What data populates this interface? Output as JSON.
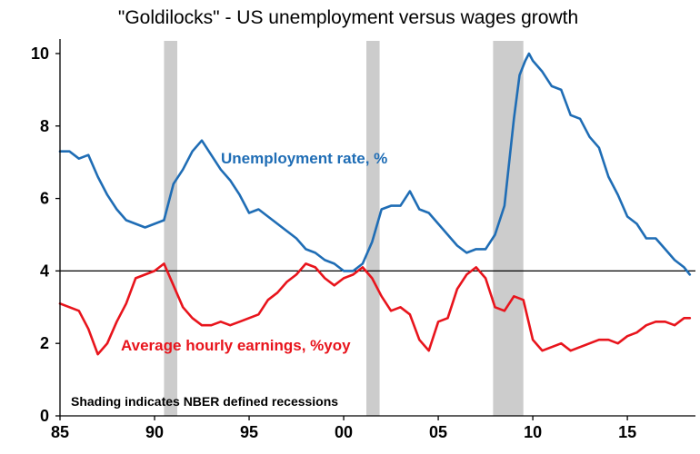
{
  "chart_data": {
    "type": "line",
    "title": "\"Goldilocks\" - US unemployment versus wages growth",
    "xlim": [
      1985,
      2018.6
    ],
    "ylim": [
      0,
      10.4
    ],
    "x_ticks": [
      {
        "value": 1985,
        "label": "85"
      },
      {
        "value": 1990,
        "label": "90"
      },
      {
        "value": 1995,
        "label": "95"
      },
      {
        "value": 2000,
        "label": "00"
      },
      {
        "value": 2005,
        "label": "05"
      },
      {
        "value": 2010,
        "label": "10"
      },
      {
        "value": 2015,
        "label": "15"
      }
    ],
    "y_ticks": [
      0,
      2,
      4,
      6,
      8,
      10
    ],
    "reference_line": 4,
    "recessions": [
      [
        1990.5,
        1991.2
      ],
      [
        2001.2,
        2001.9
      ],
      [
        2007.9,
        2009.5
      ]
    ],
    "annotation": "Shading indicates NBER defined recessions",
    "series": [
      {
        "name": "Unemployment rate, %",
        "color": "#1f6db5",
        "x": [
          1985.0,
          1985.5,
          1986.0,
          1986.5,
          1987.0,
          1987.5,
          1988.0,
          1988.5,
          1989.0,
          1989.5,
          1990.0,
          1990.5,
          1991.0,
          1991.5,
          1992.0,
          1992.5,
          1993.0,
          1993.5,
          1994.0,
          1994.5,
          1995.0,
          1995.5,
          1996.0,
          1996.5,
          1997.0,
          1997.5,
          1998.0,
          1998.5,
          1999.0,
          1999.5,
          2000.0,
          2000.5,
          2001.0,
          2001.5,
          2002.0,
          2002.5,
          2003.0,
          2003.5,
          2004.0,
          2004.5,
          2005.0,
          2005.5,
          2006.0,
          2006.5,
          2007.0,
          2007.5,
          2008.0,
          2008.5,
          2009.0,
          2009.3,
          2009.6,
          2009.8,
          2010.0,
          2010.5,
          2011.0,
          2011.5,
          2012.0,
          2012.5,
          2013.0,
          2013.5,
          2014.0,
          2014.5,
          2015.0,
          2015.5,
          2016.0,
          2016.5,
          2017.0,
          2017.5,
          2018.0,
          2018.3
        ],
        "y": [
          7.3,
          7.3,
          7.1,
          7.2,
          6.6,
          6.1,
          5.7,
          5.4,
          5.3,
          5.2,
          5.3,
          5.4,
          6.4,
          6.8,
          7.3,
          7.6,
          7.2,
          6.8,
          6.5,
          6.1,
          5.6,
          5.7,
          5.5,
          5.3,
          5.1,
          4.9,
          4.6,
          4.5,
          4.3,
          4.2,
          4.0,
          4.0,
          4.2,
          4.8,
          5.7,
          5.8,
          5.8,
          6.2,
          5.7,
          5.6,
          5.3,
          5.0,
          4.7,
          4.5,
          4.6,
          4.6,
          5.0,
          5.8,
          8.2,
          9.4,
          9.8,
          10.0,
          9.8,
          9.5,
          9.1,
          9.0,
          8.3,
          8.2,
          7.7,
          7.4,
          6.6,
          6.1,
          5.5,
          5.3,
          4.9,
          4.9,
          4.6,
          4.3,
          4.1,
          3.9
        ]
      },
      {
        "name": "Average hourly earnings, %yoy",
        "color": "#e8141c",
        "x": [
          1985.0,
          1985.5,
          1986.0,
          1986.5,
          1987.0,
          1987.5,
          1988.0,
          1988.5,
          1989.0,
          1989.5,
          1990.0,
          1990.5,
          1991.0,
          1991.5,
          1992.0,
          1992.5,
          1993.0,
          1993.5,
          1994.0,
          1994.5,
          1995.0,
          1995.5,
          1996.0,
          1996.5,
          1997.0,
          1997.5,
          1998.0,
          1998.5,
          1999.0,
          1999.5,
          2000.0,
          2000.5,
          2001.0,
          2001.5,
          2002.0,
          2002.5,
          2003.0,
          2003.5,
          2004.0,
          2004.5,
          2005.0,
          2005.5,
          2006.0,
          2006.5,
          2007.0,
          2007.5,
          2008.0,
          2008.5,
          2009.0,
          2009.5,
          2010.0,
          2010.5,
          2011.0,
          2011.5,
          2012.0,
          2012.5,
          2013.0,
          2013.5,
          2014.0,
          2014.5,
          2015.0,
          2015.5,
          2016.0,
          2016.5,
          2017.0,
          2017.5,
          2018.0,
          2018.3
        ],
        "y": [
          3.1,
          3.0,
          2.9,
          2.4,
          1.7,
          2.0,
          2.6,
          3.1,
          3.8,
          3.9,
          4.0,
          4.2,
          3.6,
          3.0,
          2.7,
          2.5,
          2.5,
          2.6,
          2.5,
          2.6,
          2.7,
          2.8,
          3.2,
          3.4,
          3.7,
          3.9,
          4.2,
          4.1,
          3.8,
          3.6,
          3.8,
          3.9,
          4.1,
          3.8,
          3.3,
          2.9,
          3.0,
          2.8,
          2.1,
          1.8,
          2.6,
          2.7,
          3.5,
          3.9,
          4.1,
          3.8,
          3.0,
          2.9,
          3.3,
          3.2,
          2.1,
          1.8,
          1.9,
          2.0,
          1.8,
          1.9,
          2.0,
          2.1,
          2.1,
          2.0,
          2.2,
          2.3,
          2.5,
          2.6,
          2.6,
          2.5,
          2.7,
          2.7
        ]
      }
    ]
  }
}
